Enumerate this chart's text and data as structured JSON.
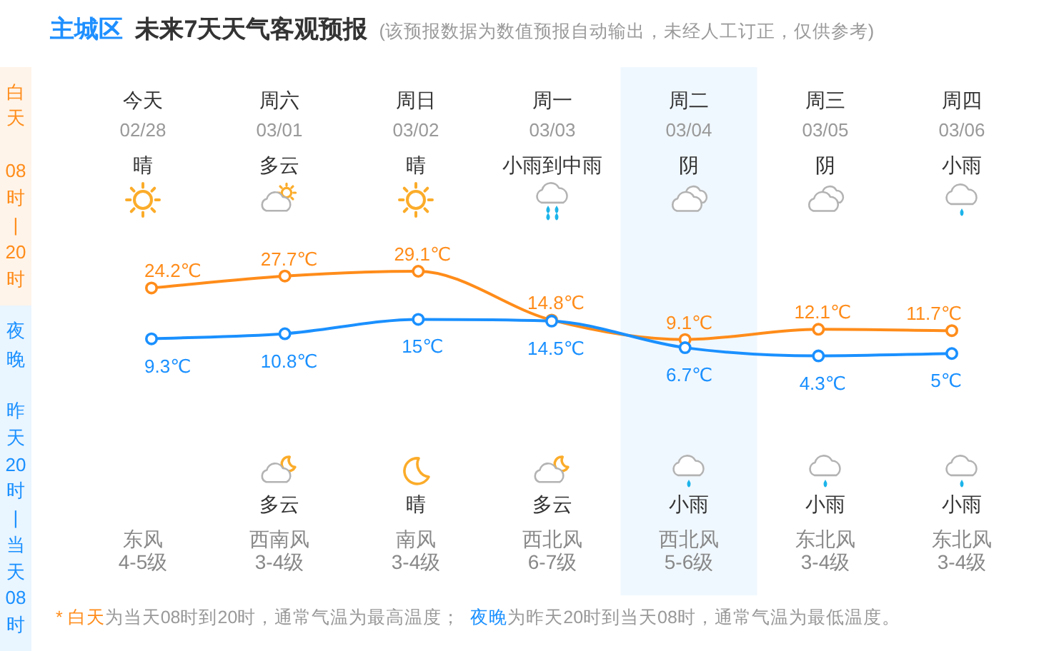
{
  "chart_data": {
    "type": "line",
    "title": "主城区 未来7天天气客观预报",
    "subtitle": "(该预报数据为数值预报自动输出，未经人工订正，仅供参考)",
    "categories": [
      "今天",
      "周六",
      "周日",
      "周一",
      "周二",
      "周三",
      "周四"
    ],
    "series": [
      {
        "color": "#ff8c1a",
        "values": [
          24.2,
          27.7,
          29.1,
          14.8,
          9.1,
          12.1,
          11.7
        ],
        "value_labels": [
          "24.2℃",
          "27.7℃",
          "29.1℃",
          "14.8℃",
          "9.1℃",
          "12.1℃",
          "11.7℃"
        ]
      },
      {
        "color": "#1a90ff",
        "values": [
          9.3,
          10.8,
          15,
          14.5,
          6.7,
          4.3,
          5
        ],
        "value_labels": [
          "9.3℃",
          "10.8℃",
          "15℃",
          "14.5℃",
          "6.7℃",
          "4.3℃",
          "5℃"
        ]
      }
    ],
    "marker": "circle",
    "bands": [
      {
        "axis": "x",
        "from": "周二",
        "to": "周二",
        "color": "#f0f8ff"
      }
    ],
    "annotations": [
      "02/28",
      "03/01",
      "03/02",
      "03/03",
      "03/04",
      "03/05",
      "03/06",
      "晴",
      "多云",
      "晴",
      "小雨到中雨",
      "阴",
      "阴",
      "小雨",
      "多云",
      "晴",
      "多云",
      "小雨",
      "小雨",
      "小雨",
      "东风",
      "西南风",
      "南风",
      "西北风",
      "西北风",
      "东北风",
      "东北风",
      "4-5级",
      "3-4级",
      "3-4级",
      "6-7级",
      "5-6级",
      "3-4级",
      "3-4级",
      "白天",
      "08时|20时",
      "夜晚",
      "昨天20时|当天08时",
      "* 白天",
      "为当天08时到20时，通常气温为最高温度；",
      "夜晚",
      "为昨天20时到当天08时，通常气温为最低温度。"
    ]
  }
}
